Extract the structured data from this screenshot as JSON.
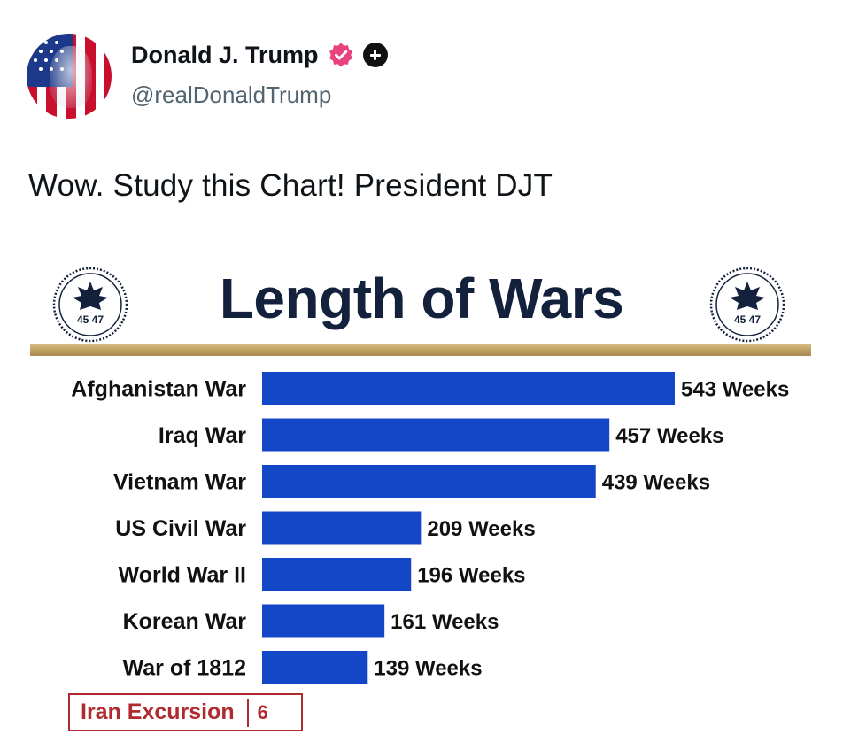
{
  "post": {
    "display_name": "Donald J. Trump",
    "handle": "@realDonaldTrump",
    "text": "Wow. Study this Chart! President DJT",
    "icons": [
      "verified-badge-icon",
      "plus-icon"
    ]
  },
  "colors": {
    "bar": "#1446c8",
    "title": "#14213d",
    "gold_rule": "#c2a466",
    "highlight": "#b02a30",
    "verified_badge": "#e8437e"
  },
  "chart_data": {
    "type": "bar",
    "orientation": "horizontal",
    "title": "Length of Wars",
    "seal_text": "45 47",
    "categories": [
      "Afghanistan War",
      "Iraq War",
      "Vietnam War",
      "US Civil War",
      "World War II",
      "Korean War",
      "War of 1812"
    ],
    "values": [
      543,
      457,
      439,
      209,
      196,
      161,
      139
    ],
    "value_labels": [
      "543 Weeks",
      "457 Weeks",
      "439 Weeks",
      "209 Weeks",
      "196 Weeks",
      "161 Weeks",
      "139 Weeks"
    ],
    "value_unit": "Weeks",
    "highlight": {
      "category": "Iran Excursion",
      "value": "6"
    },
    "grid": false,
    "legend": "none"
  }
}
